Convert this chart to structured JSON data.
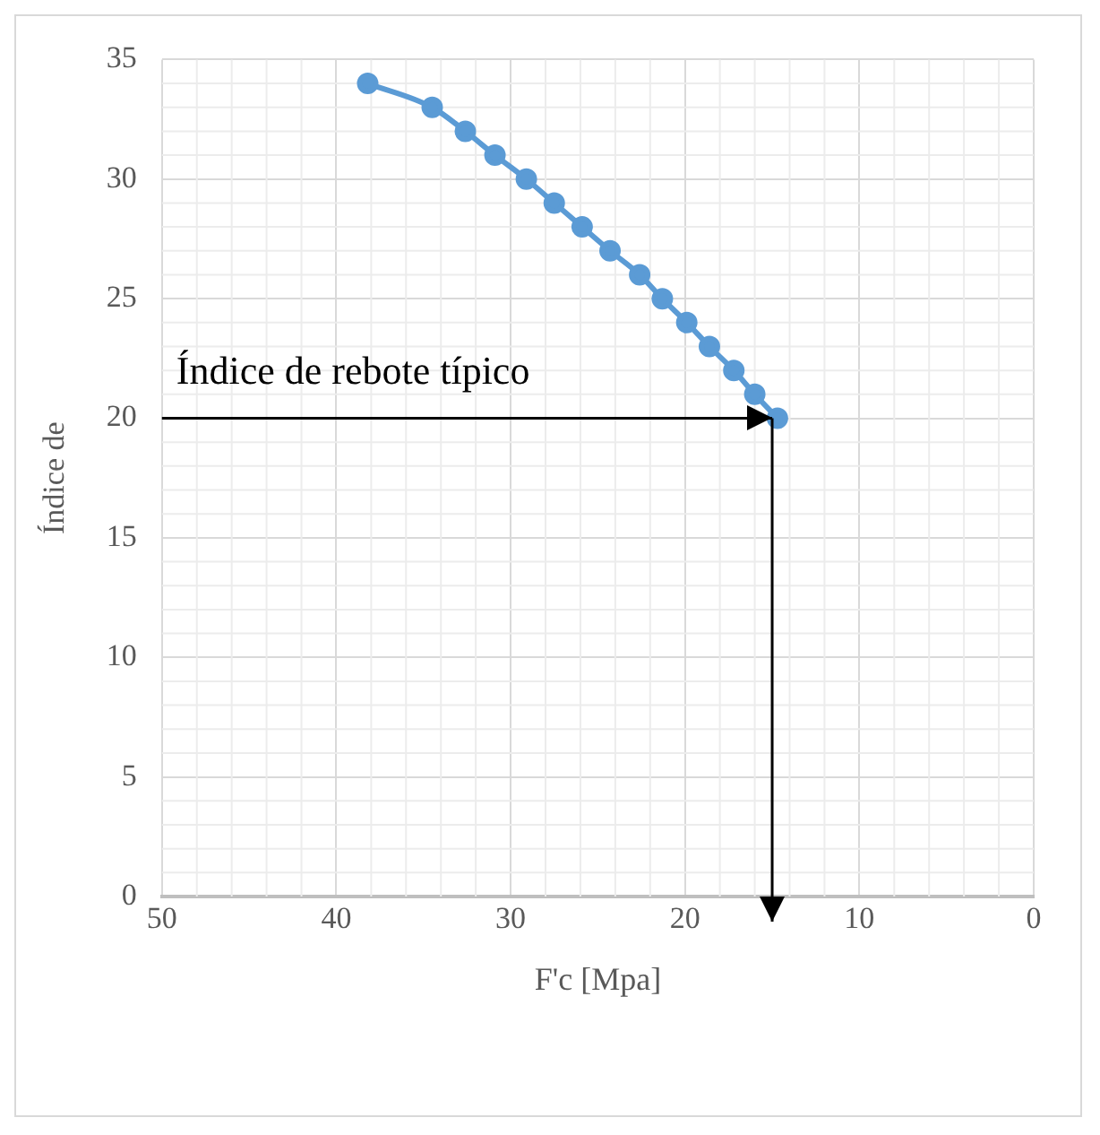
{
  "chart_data": {
    "type": "line",
    "xlabel": "F'c [Mpa]",
    "ylabel": "Índice de",
    "x": [
      38.2,
      34.5,
      32.6,
      30.9,
      29.1,
      27.5,
      25.9,
      24.3,
      22.6,
      21.3,
      19.9,
      18.6,
      17.2,
      16.0,
      14.7
    ],
    "series": [
      {
        "color": "#5b9bd5",
        "values": [
          34,
          33,
          32,
          31,
          30,
          29,
          28,
          27,
          26,
          25,
          24,
          23,
          22,
          21,
          20
        ]
      }
    ],
    "xlim": [
      50,
      0
    ],
    "xticks": [
      50,
      40,
      30,
      20,
      10,
      0
    ],
    "ylim": [
      0,
      35
    ],
    "yticks": [
      0,
      5,
      10,
      15,
      20,
      25,
      30,
      35
    ],
    "grid": true,
    "marker": "circle",
    "line_style": "solid",
    "ref_lines": [
      {
        "axis": "y",
        "value": 20,
        "label": "Índice de rebote típico",
        "color": "#000000"
      },
      {
        "axis": "x",
        "value": 15,
        "color": "#000000"
      }
    ]
  }
}
